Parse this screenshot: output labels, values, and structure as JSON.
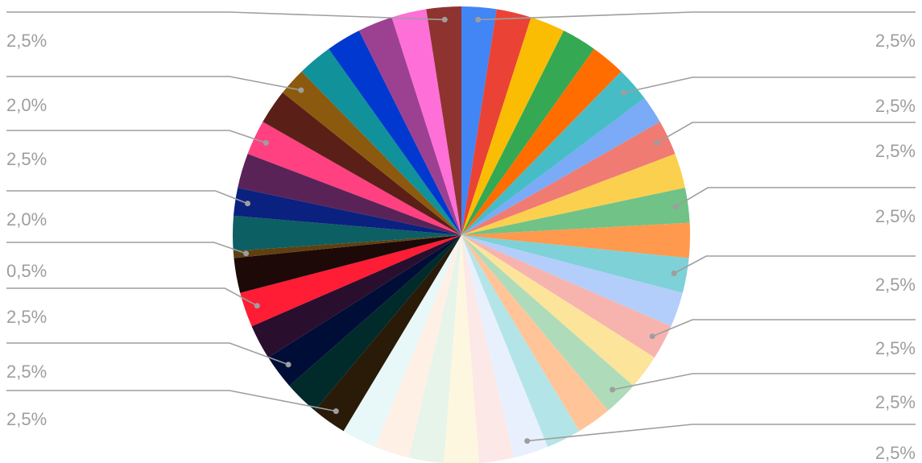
{
  "chart_data": {
    "type": "pie",
    "title": "",
    "start_angle_deg": 0,
    "direction": "clockwise",
    "legend": "none",
    "slices": [
      {
        "value": 2.5,
        "color": "#4285F4"
      },
      {
        "value": 2.5,
        "color": "#EA4335"
      },
      {
        "value": 2.5,
        "color": "#FBBC04"
      },
      {
        "value": 2.5,
        "color": "#34A853"
      },
      {
        "value": 2.5,
        "color": "#FF6D01"
      },
      {
        "value": 2.5,
        "color": "#46BDC6",
        "label": "2,5%"
      },
      {
        "value": 2.0,
        "color": "#7BAAF7"
      },
      {
        "value": 2.5,
        "color": "#F07B72",
        "label": "2,5%"
      },
      {
        "value": 2.5,
        "color": "#FCD04F"
      },
      {
        "value": 2.5,
        "color": "#71C287",
        "label": "2,5%"
      },
      {
        "value": 2.5,
        "color": "#FF994D"
      },
      {
        "value": 2.5,
        "color": "#7ED1D7",
        "label": "2,5%"
      },
      {
        "value": 2.5,
        "color": "#B3CEFB"
      },
      {
        "value": 2.5,
        "color": "#F7B4AE",
        "label": "2,5%"
      },
      {
        "value": 2.5,
        "color": "#FDE49B"
      },
      {
        "value": 2.5,
        "color": "#AEDCBA",
        "label": "2,5%"
      },
      {
        "value": 2.5,
        "color": "#FFC599"
      },
      {
        "value": 2.5,
        "color": "#B3E5E8"
      },
      {
        "value": 2.5,
        "color": "#E8F0FE",
        "label": "2,5%"
      },
      {
        "value": 2.5,
        "color": "#FCE8E6"
      },
      {
        "value": 2.5,
        "color": "#FEF7E0"
      },
      {
        "value": 2.5,
        "color": "#E6F4EA"
      },
      {
        "value": 2.5,
        "color": "#FFF0E6"
      },
      {
        "value": 2.5,
        "color": "#E8F7F8"
      },
      {
        "value": 2.5,
        "color": "#2A1A08",
        "label": "2,5%"
      },
      {
        "value": 2.5,
        "color": "#012A2A"
      },
      {
        "value": 2.5,
        "color": "#000E37",
        "label": "2,5%"
      },
      {
        "value": 2.5,
        "color": "#2A0E2E"
      },
      {
        "value": 2.5,
        "color": "#FF1C35",
        "label": "2,5%"
      },
      {
        "value": 2.5,
        "color": "#1E0909"
      },
      {
        "value": 0.5,
        "color": "#604011",
        "label": "0,5%"
      },
      {
        "value": 2.5,
        "color": "#0C5F62"
      },
      {
        "value": 2.0,
        "color": "#0B2180",
        "label": "2,0%"
      },
      {
        "value": 2.5,
        "color": "#5A2357"
      },
      {
        "value": 2.5,
        "color": "#FF4081",
        "label": "2,5%"
      },
      {
        "value": 2.5,
        "color": "#5A1F16"
      },
      {
        "value": 2.0,
        "color": "#8B5A0E",
        "label": "2,0%"
      },
      {
        "value": 2.5,
        "color": "#11919A"
      },
      {
        "value": 2.5,
        "color": "#0138CF"
      },
      {
        "value": 2.5,
        "color": "#9C4192"
      },
      {
        "value": 2.5,
        "color": "#FF6FD8"
      },
      {
        "value": 2.5,
        "color": "#8E3330",
        "label": "2,5%"
      }
    ],
    "first_slice_label": "2,5%"
  }
}
